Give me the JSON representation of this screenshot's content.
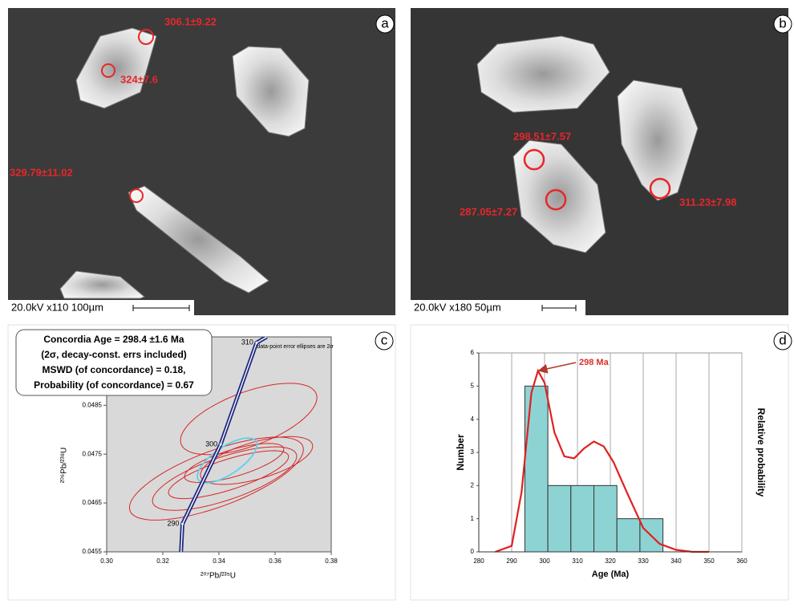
{
  "images": [
    {
      "label": "a",
      "spot_labels": [
        "306.1±9.22",
        "324±7.6",
        "329.79±11.02"
      ],
      "scale_bar": "20.0kV x110 100µm"
    },
    {
      "label": "b",
      "spot_labels": [
        "298.51±7.57",
        "287.05±7.27",
        "311.23±7.98"
      ],
      "scale_bar": "20.0kV x180 50µm"
    }
  ],
  "chart_data": [
    {
      "type": "concordia",
      "panel": "c",
      "annotations": [
        "Concordia Age = 298.4 ±1.6 Ma",
        "(2σ, decay-const. errs included)",
        "MSWD (of concordance) = 0.18,",
        "Probability (of concordance) = 0.67"
      ],
      "note": "data-point error ellipses are 2σ",
      "xlabel": "²⁰⁷Pb/²³⁵U",
      "ylabel": "²⁰⁶Pb/²³⁸U",
      "xlim": [
        0.3,
        0.38
      ],
      "xticks": [
        {
          "value": 0.3,
          "label": "0.30"
        },
        {
          "value": 0.32,
          "label": "0.32"
        },
        {
          "value": 0.34,
          "label": "0.34"
        },
        {
          "value": 0.36,
          "label": "0.36"
        },
        {
          "value": 0.38,
          "label": "0.38"
        }
      ],
      "ylim": [
        0.0455,
        0.0499
      ],
      "yticks": [
        0.0455,
        0.0465,
        0.0475,
        0.0485
      ],
      "background": "#d9d9d9",
      "concordia": {
        "color": "#1f2a80",
        "x": [
          0.3265,
          0.327,
          0.3406,
          0.3534,
          0.357
        ],
        "y": [
          0.0455,
          0.04607,
          0.0477,
          0.04978,
          0.0499
        ],
        "age_labels": [
          null,
          290,
          300,
          310,
          null
        ]
      },
      "ellipses": [
        {
          "x": 0.3506,
          "y": 0.04822,
          "x_err": 0.0243,
          "y_err": 0.00073,
          "rho": 0.6,
          "color": "#d62728"
        },
        {
          "x": 0.3391,
          "y": 0.047,
          "x_err": 0.031,
          "y_err": 0.00085,
          "rho": 0.7,
          "color": "#d62728"
        },
        {
          "x": 0.342,
          "y": 0.047,
          "x_err": 0.0257,
          "y_err": 0.00065,
          "rho": 0.7,
          "color": "#d62728"
        },
        {
          "x": 0.3434,
          "y": 0.04708,
          "x_err": 0.0214,
          "y_err": 0.00049,
          "rho": 0.75,
          "color": "#d62728"
        },
        {
          "x": 0.3454,
          "y": 0.04732,
          "x_err": 0.0177,
          "y_err": 0.0004,
          "rho": 0.7,
          "color": "#d62728"
        },
        {
          "x": 0.3534,
          "y": 0.04737,
          "x_err": 0.02,
          "y_err": 0.00049,
          "rho": 0.6,
          "color": "#d62728"
        },
        {
          "x": 0.3429,
          "y": 0.04737,
          "x_err": 0.0106,
          "y_err": 0.00046,
          "rho": 0.7,
          "color": "#5fd0ea"
        }
      ]
    },
    {
      "type": "histogram",
      "panel": "d",
      "xlabel": "Age (Ma)",
      "ylabel": "Number",
      "y2label": "Relative probability",
      "bins": [
        294,
        301,
        308,
        315,
        322,
        329,
        336
      ],
      "counts": [
        5,
        2,
        2,
        2,
        1,
        1
      ],
      "color": "#8ed3d3",
      "xlim": [
        280,
        360
      ],
      "xticks": [
        280,
        290,
        300,
        310,
        320,
        330,
        340,
        350,
        360
      ],
      "ylim": [
        0,
        6
      ],
      "yticks": [
        0,
        1,
        2,
        3,
        4,
        5,
        6
      ],
      "y2lim": [
        0,
        1
      ],
      "grid": true,
      "series": [
        {
          "color": "#e02020",
          "axis": "y2",
          "x": [
            285,
            290,
            293,
            296,
            298,
            300,
            303,
            306,
            309,
            312,
            315,
            318,
            321,
            325,
            330,
            335,
            340,
            345,
            350
          ],
          "values": [
            0,
            0.03,
            0.3,
            0.8,
            0.91,
            0.85,
            0.6,
            0.48,
            0.47,
            0.52,
            0.555,
            0.53,
            0.45,
            0.3,
            0.12,
            0.04,
            0.01,
            0,
            0
          ]
        }
      ],
      "annotation": "298 Ma"
    }
  ]
}
